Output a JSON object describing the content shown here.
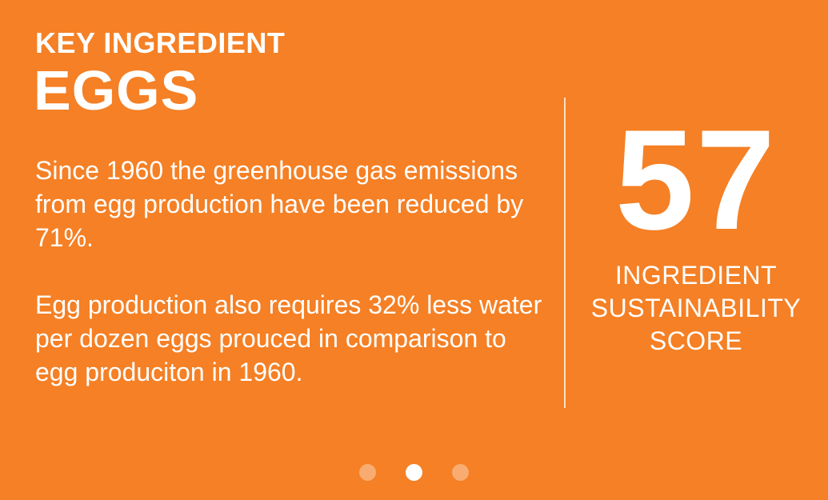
{
  "slide": {
    "kicker": "KEY INGREDIENT",
    "title": "EGGS",
    "paragraphs": [
      "Since 1960 the greenhouse gas emissions from egg production have been reduced by 71%.",
      "Egg production also requires 32% less water per dozen eggs prouced in comparison to egg produciton in 1960."
    ]
  },
  "score": {
    "value": "57",
    "label_lines": [
      "INGREDIENT",
      "SUSTAINABILITY",
      "SCORE"
    ]
  },
  "pagination": {
    "total": 3,
    "active_index": 1
  },
  "colors": {
    "background": "#f58025",
    "text": "#ffffff"
  }
}
